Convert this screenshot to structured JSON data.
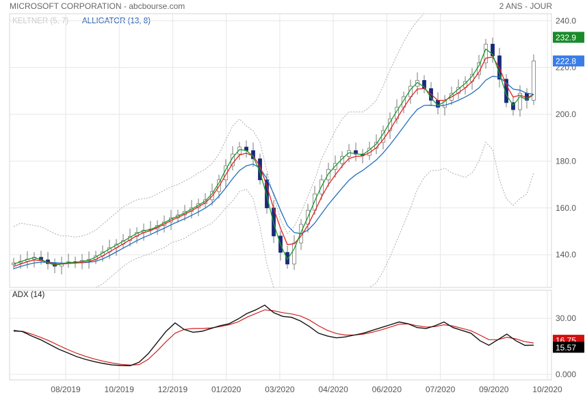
{
  "header": {
    "title": "MICROSOFT CORPORATION - abcbourse.com",
    "period": "2 ANS - JOUR"
  },
  "indicators": {
    "keltner": "KELTNER (5, 7)",
    "alligator": "ALLIGATOR (13, 8)",
    "adx": "ADX (14)"
  },
  "colors": {
    "candle": "#1a2a7a",
    "jaw": "#1f6fc0",
    "teeth": "#e02020",
    "lips": "#1a9a2a",
    "keltner": "#aaaaaa",
    "adx": "#111111",
    "adx_signal": "#d02020",
    "badge_high": "#1a8a2a",
    "badge_last": "#3a7de8",
    "badge_adx": "#000000",
    "badge_adx_signal": "#d01010"
  },
  "chart_data": [
    {
      "type": "candlestick",
      "name": "price",
      "y_ticks": [
        "240.0",
        "220.0",
        "200.0",
        "180.0",
        "160.0",
        "140.0"
      ],
      "ylim": [
        126,
        243
      ],
      "x_ticks": [
        "08/2019",
        "10/2019",
        "12/2019",
        "01/2020",
        "03/2020",
        "04/2020",
        "06/2020",
        "07/2020",
        "09/2020",
        "10/2020"
      ],
      "close": [
        136.5,
        137.2,
        138.1,
        138.9,
        137.8,
        136.2,
        135.1,
        136.4,
        137.0,
        136.8,
        137.5,
        138.0,
        139.5,
        141.2,
        143.0,
        144.5,
        146.0,
        147.8,
        149.5,
        150.5,
        151.0,
        152.5,
        154.0,
        155.8,
        157.0,
        158.5,
        160.0,
        161.8,
        163.5,
        167.0,
        172.0,
        178.0,
        183.0,
        186.0,
        184.5,
        181.0,
        172.0,
        160.0,
        148.0,
        141.0,
        136.0,
        145.0,
        153.0,
        159.0,
        166.0,
        172.0,
        176.5,
        179.0,
        182.0,
        184.5,
        183.0,
        182.5,
        185.5,
        188.0,
        193.0,
        198.0,
        203.0,
        207.5,
        212.0,
        214.5,
        211.0,
        206.0,
        203.0,
        206.0,
        209.0,
        211.5,
        214.0,
        217.0,
        222.0,
        230.0,
        225.0,
        215.0,
        205.0,
        202.0,
        209.0,
        206.0,
        222.8
      ],
      "keltner_upper": [
        152.0,
        153.5,
        153.0,
        152.5,
        152.0,
        150.5,
        149.0,
        148.0,
        148.0,
        147.5,
        148.0,
        149.0,
        150.5,
        153.0,
        155.5,
        158.0,
        160.5,
        162.0,
        163.5,
        164.0,
        164.5,
        166.0,
        167.5,
        169.0,
        170.0,
        171.5,
        173.0,
        175.0,
        176.5,
        179.0,
        183.0,
        189.0,
        195.0,
        198.0,
        195.0,
        193.0,
        188.0,
        176.0,
        165.0,
        155.0,
        149.0,
        152.0,
        158.0,
        165.0,
        172.0,
        181.0,
        187.0,
        193.0,
        198.0,
        201.0,
        201.0,
        201.0,
        203.0,
        206.0,
        212.0,
        219.0,
        225.0,
        231.0,
        236.0,
        240.0,
        243.0,
        243.0,
        243.0,
        243.0,
        243.0,
        243.0,
        243.0,
        243.0,
        243.0,
        243.0,
        243.0,
        243.0,
        243.0,
        243.0,
        243.0,
        243.0,
        243.0
      ],
      "keltner_lower": [
        126.0,
        126.0,
        126.0,
        126.0,
        126.0,
        126.0,
        126.0,
        126.0,
        126.0,
        126.0,
        126.0,
        126.0,
        126.0,
        127.5,
        130.0,
        132.5,
        135.0,
        137.0,
        138.5,
        139.5,
        140.5,
        142.0,
        143.0,
        145.0,
        146.0,
        147.0,
        149.0,
        150.5,
        152.0,
        153.5,
        156.5,
        160.0,
        163.0,
        167.0,
        168.0,
        164.0,
        152.0,
        136.0,
        126.0,
        126.0,
        126.0,
        126.0,
        126.0,
        126.0,
        126.0,
        126.0,
        126.0,
        126.0,
        126.0,
        126.0,
        126.0,
        126.0,
        126.0,
        128.0,
        133.0,
        139.0,
        146.0,
        153.0,
        160.0,
        168.0,
        173.0,
        176.0,
        176.0,
        177.0,
        175.0,
        174.0,
        173.0,
        175.0,
        180.0,
        188.0,
        185.0,
        172.0,
        164.0,
        161.0,
        164.0,
        166.0,
        175.0
      ],
      "jaw": [
        134.0,
        135.0,
        135.8,
        136.5,
        136.8,
        136.8,
        136.6,
        136.4,
        136.4,
        136.5,
        136.6,
        136.8,
        137.2,
        138.2,
        139.6,
        141.2,
        142.8,
        144.4,
        146.0,
        147.4,
        148.6,
        150.0,
        151.3,
        152.8,
        154.1,
        155.4,
        156.8,
        158.3,
        159.9,
        162.0,
        165.0,
        168.6,
        172.5,
        176.0,
        178.0,
        178.7,
        177.0,
        172.5,
        166.0,
        159.0,
        152.5,
        149.5,
        149.0,
        150.5,
        153.5,
        157.5,
        161.5,
        165.0,
        168.5,
        171.8,
        174.2,
        176.0,
        178.2,
        180.5,
        183.5,
        187.0,
        190.8,
        194.7,
        198.7,
        202.1,
        203.8,
        203.9,
        203.5,
        203.9,
        204.8,
        206.0,
        207.4,
        209.1,
        211.3,
        214.6,
        216.3,
        215.9,
        213.4,
        210.8,
        210.3,
        209.0,
        208.5
      ],
      "teeth": [
        135.0,
        136.0,
        137.0,
        137.8,
        137.5,
        136.8,
        136.0,
        136.0,
        136.3,
        136.4,
        136.7,
        137.1,
        138.0,
        139.5,
        141.2,
        142.9,
        144.6,
        146.4,
        148.1,
        149.4,
        150.3,
        151.6,
        153.0,
        154.6,
        155.9,
        157.3,
        158.8,
        160.5,
        162.2,
        165.0,
        169.2,
        174.2,
        179.0,
        182.6,
        183.4,
        182.2,
        177.8,
        169.4,
        159.7,
        151.3,
        144.3,
        144.7,
        148.0,
        152.6,
        158.5,
        164.7,
        170.0,
        174.1,
        177.9,
        181.1,
        182.0,
        182.2,
        183.6,
        185.7,
        189.2,
        193.4,
        198.2,
        202.8,
        207.3,
        210.8,
        211.0,
        208.6,
        205.9,
        206.0,
        207.4,
        209.2,
        211.3,
        214.0,
        218.0,
        224.0,
        224.5,
        219.8,
        212.5,
        207.4,
        208.2,
        207.1,
        208.5
      ],
      "lips": [
        136.0,
        137.0,
        138.0,
        138.8,
        138.0,
        136.6,
        135.5,
        136.0,
        136.7,
        136.7,
        137.2,
        137.7,
        139.0,
        140.7,
        142.5,
        144.1,
        145.7,
        147.4,
        149.1,
        150.2,
        150.8,
        152.1,
        153.6,
        155.3,
        156.5,
        157.9,
        159.5,
        161.2,
        162.9,
        166.1,
        170.7,
        176.4,
        181.5,
        184.9,
        184.6,
        182.0,
        175.3,
        165.1,
        153.4,
        144.3,
        138.0,
        142.5,
        149.6,
        156.1,
        163.0,
        169.3,
        174.6,
        177.9,
        181.0,
        183.6,
        183.2,
        182.7,
        184.8,
        187.3,
        191.7,
        196.6,
        201.4,
        205.9,
        210.6,
        213.6,
        211.7,
        207.0,
        203.8,
        205.4,
        208.3,
        210.8,
        213.2,
        216.3,
        220.8,
        227.9,
        225.6,
        217.4,
        208.4,
        203.8,
        207.6,
        206.3,
        208.5
      ],
      "labels": {
        "high": "232.9",
        "last": "222.8"
      }
    },
    {
      "type": "line",
      "name": "adx",
      "y_ticks": [
        "30.00",
        "0.000"
      ],
      "ylim": [
        -3,
        45
      ],
      "series": [
        {
          "values": [
            23.5,
            22.8,
            20.5,
            18.5,
            16.0,
            13.5,
            11.5,
            9.5,
            8.0,
            6.8,
            5.8,
            5.0,
            4.7,
            4.6,
            6.5,
            11.0,
            17.0,
            23.0,
            27.5,
            24.0,
            22.5,
            23.0,
            24.5,
            26.0,
            27.0,
            29.5,
            32.5,
            34.5,
            37.0,
            33.0,
            31.0,
            30.5,
            28.5,
            25.5,
            22.0,
            20.5,
            19.5,
            20.0,
            21.0,
            22.0,
            23.5,
            25.0,
            26.5,
            28.0,
            27.0,
            25.0,
            24.5,
            26.0,
            28.0,
            25.0,
            23.5,
            22.0,
            18.0,
            15.5,
            18.5,
            21.5,
            18.0,
            15.5,
            15.57
          ]
        },
        {
          "values": [
            23.0,
            23.0,
            21.5,
            19.8,
            17.8,
            15.5,
            13.3,
            11.3,
            9.6,
            8.2,
            7.0,
            6.0,
            5.3,
            4.9,
            5.2,
            8.0,
            12.5,
            17.5,
            22.0,
            24.0,
            24.5,
            24.5,
            24.8,
            25.5,
            26.5,
            28.0,
            30.5,
            32.5,
            34.5,
            34.0,
            33.0,
            32.3,
            31.2,
            29.0,
            26.0,
            23.5,
            21.8,
            21.0,
            21.0,
            21.5,
            22.5,
            23.8,
            25.3,
            26.8,
            27.0,
            26.0,
            25.3,
            25.5,
            26.5,
            25.8,
            24.6,
            23.3,
            21.0,
            18.5,
            18.5,
            19.8,
            19.0,
            17.5,
            16.75
          ]
        }
      ],
      "labels": {
        "adx": "15.57",
        "signal": "16.75"
      }
    }
  ]
}
